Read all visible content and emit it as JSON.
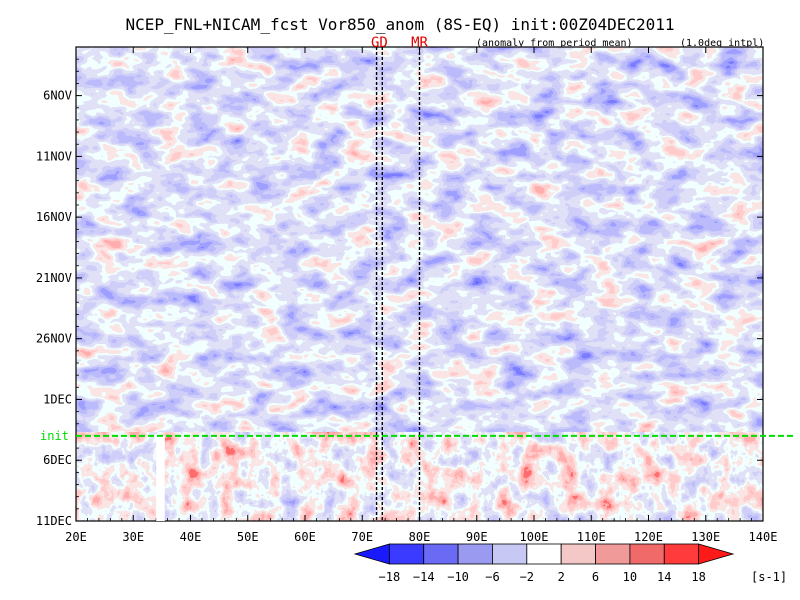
{
  "chart_data": {
    "type": "heatmap",
    "title": "NCEP_FNL+NICAM_fcst Vor850_anom (8S-EQ) init:00Z04DEC2011",
    "subtitle_left": "(anomaly from period mean)",
    "subtitle_right": "(1.0deg intpl)",
    "x_axis": {
      "ticks": [
        "20E",
        "30E",
        "40E",
        "50E",
        "60E",
        "70E",
        "80E",
        "90E",
        "100E",
        "110E",
        "120E",
        "130E",
        "140E"
      ],
      "range": [
        20,
        140
      ]
    },
    "y_axis": {
      "ticks": [
        "6NOV",
        "11NOV",
        "16NOV",
        "21NOV",
        "26NOV",
        "1DEC",
        "6DEC",
        "11DEC"
      ],
      "range": [
        "2011-11-02",
        "2011-12-11"
      ]
    },
    "init_label": "init",
    "init_date": "2011-12-04",
    "markers": [
      {
        "label": "GD",
        "lon": [
          72.5,
          73.5
        ]
      },
      {
        "label": "MR",
        "lon": [
          80
        ]
      }
    ],
    "missing_band": {
      "lon": [
        34,
        35.5
      ],
      "from": "2011-12-04"
    },
    "colorbar": {
      "levels": [
        "-18",
        "-14",
        "-10",
        "-6",
        "-2",
        "2",
        "6",
        "10",
        "14",
        "18"
      ],
      "unit": "[s-1]",
      "colors": [
        "#1a1aff",
        "#3b3bff",
        "#6a6af5",
        "#9a9af0",
        "#c8c8f5",
        "#ffffff",
        "#f5c8c8",
        "#f09a9a",
        "#f06a6a",
        "#ff3b3b",
        "#ff1a1a"
      ]
    },
    "grid": true,
    "colors": {
      "init_line": "#00dd00",
      "marker_text": "#e00000"
    }
  }
}
